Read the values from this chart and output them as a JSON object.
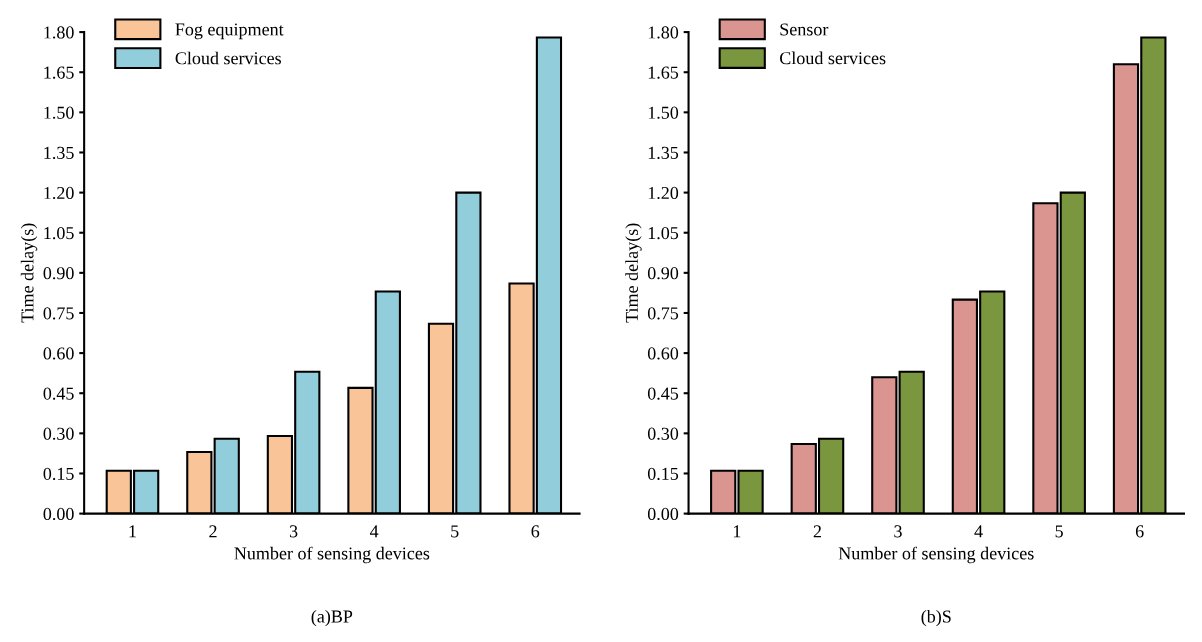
{
  "chart_data": [
    {
      "type": "bar",
      "categories": [
        "1",
        "2",
        "3",
        "4",
        "5",
        "6"
      ],
      "xlabel": "Number of sensing devices",
      "ylabel": "Time delay(s)",
      "annotations": [
        "(a)BP"
      ],
      "ylim": [
        0,
        1.8
      ],
      "yticks": [
        {
          "value": 0,
          "label": "0.00"
        },
        {
          "value": 0.15,
          "label": "0.15"
        },
        {
          "value": 0.3,
          "label": "0.30"
        },
        {
          "value": 0.45,
          "label": "0.45"
        },
        {
          "value": 0.6,
          "label": "0.60"
        },
        {
          "value": 0.75,
          "label": "0.75"
        },
        {
          "value": 0.9,
          "label": "0.90"
        },
        {
          "value": 1.05,
          "label": "1.05"
        },
        {
          "value": 1.2,
          "label": "1.20"
        },
        {
          "value": 1.35,
          "label": "1.35"
        },
        {
          "value": 1.5,
          "label": "1.50"
        },
        {
          "value": 1.65,
          "label": "1.65"
        },
        {
          "value": 1.8,
          "label": "1.80"
        }
      ],
      "legend": "top left",
      "grid": false,
      "series": [
        {
          "name": "Fog equipment",
          "color": "#f8c498",
          "values": [
            0.16,
            0.23,
            0.29,
            0.47,
            0.71,
            0.86
          ]
        },
        {
          "name": "Cloud services",
          "color": "#92cddb",
          "values": [
            0.16,
            0.28,
            0.53,
            0.83,
            1.2,
            1.78
          ]
        }
      ]
    },
    {
      "type": "bar",
      "categories": [
        "1",
        "2",
        "3",
        "4",
        "5",
        "6"
      ],
      "xlabel": "Number of sensing devices",
      "ylabel": "Time delay(s)",
      "annotations": [
        "(b)S"
      ],
      "ylim": [
        0,
        1.8
      ],
      "yticks": [
        {
          "value": 0,
          "label": "0.00"
        },
        {
          "value": 0.15,
          "label": "0.15"
        },
        {
          "value": 0.3,
          "label": "0.30"
        },
        {
          "value": 0.45,
          "label": "0.45"
        },
        {
          "value": 0.6,
          "label": "0.60"
        },
        {
          "value": 0.75,
          "label": "0.75"
        },
        {
          "value": 0.9,
          "label": "0.90"
        },
        {
          "value": 1.05,
          "label": "1.05"
        },
        {
          "value": 1.2,
          "label": "1.20"
        },
        {
          "value": 1.35,
          "label": "1.35"
        },
        {
          "value": 1.5,
          "label": "1.50"
        },
        {
          "value": 1.65,
          "label": "1.65"
        },
        {
          "value": 1.8,
          "label": "1.80"
        }
      ],
      "legend": "top left",
      "grid": false,
      "series": [
        {
          "name": "Sensor",
          "color": "#da9591",
          "values": [
            0.16,
            0.26,
            0.51,
            0.8,
            1.16,
            1.68
          ]
        },
        {
          "name": "Cloud services",
          "color": "#7a973f",
          "values": [
            0.16,
            0.28,
            0.53,
            0.83,
            1.2,
            1.78
          ]
        }
      ]
    }
  ]
}
